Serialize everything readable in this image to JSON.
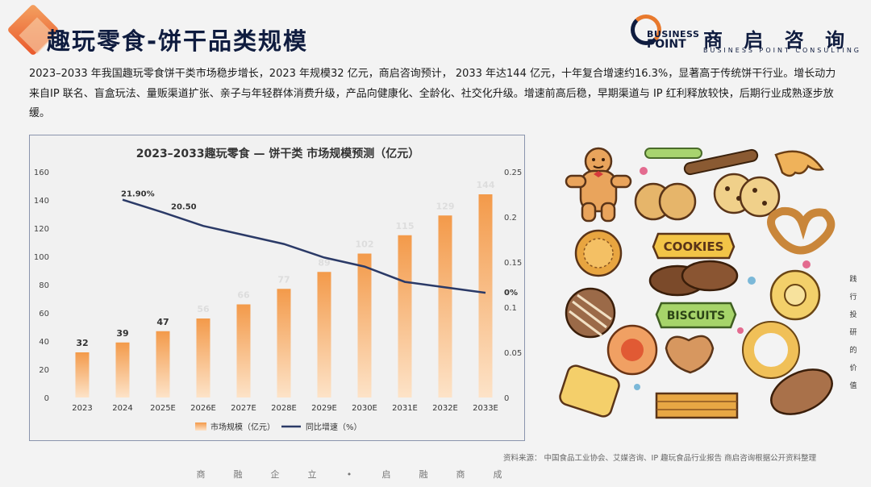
{
  "header": {
    "title": "趣玩零食-饼干品类规模",
    "logo_cn": "商 启 咨 询",
    "logo_en_line1": "BUSINESS",
    "logo_en_line2": "POINT",
    "logo_en_sub": "BUSINESS POINT CONSULTING"
  },
  "intro": "2023–2033 年我国趣玩零食饼干类市场稳步增长，2023 年规模32 亿元，商启咨询预计， 2033 年达144 亿元，十年复合增速约16.3%，显著高于传统饼干行业。增长动力来自IP 联名、盲盒玩法、量贩渠道扩张、亲子与年轻群体消费升级，产品向健康化、全龄化、社交化升级。增速前高后稳，早期渠道与 IP 红利释放较快，后期行业成熟逐步放缓。",
  "chart_data": {
    "type": "bar",
    "title": "2023–2033趣玩零食 — 饼干类 市场规模预测（亿元）",
    "categories": [
      "2023",
      "2024",
      "2025E",
      "2026E",
      "2027E",
      "2028E",
      "2029E",
      "2030E",
      "2031E",
      "2032E",
      "2033E"
    ],
    "series": [
      {
        "name": "市场规模（亿元）",
        "type": "bar",
        "axis": "left",
        "values": [
          32,
          39,
          47,
          56,
          66,
          77,
          89,
          102,
          115,
          129,
          144
        ]
      },
      {
        "name": "同比增速（%）",
        "type": "line",
        "axis": "right",
        "values": [
          null,
          0.219,
          0.205,
          0.19,
          0.18,
          0.17,
          0.155,
          0.145,
          0.128,
          0.122,
          0.116
        ]
      }
    ],
    "bar_labels": [
      "32",
      "39",
      "47",
      "56",
      "66",
      "77",
      "89",
      "102",
      "115",
      "129",
      "144"
    ],
    "line_labels": [
      "21.90%",
      "20.50"
    ],
    "ylim_left": [
      0,
      160
    ],
    "yticks_left": [
      "0",
      "20",
      "40",
      "60",
      "80",
      "100",
      "120",
      "140",
      "160"
    ],
    "ylim_right": [
      0,
      0.25
    ],
    "yticks_right": [
      "0",
      "0.05",
      "0.1",
      "0.15",
      "0.2",
      "0.25"
    ],
    "right_axis_extra_label": "0%",
    "legend_position": "bottom",
    "colors": {
      "bar_top": "#f39a4a",
      "bar_bottom": "#fde3c8",
      "line": "#2b3a67"
    }
  },
  "side_text": [
    "践",
    "行",
    "投",
    "研",
    "的",
    "价",
    "值"
  ],
  "source": "资料来源：   中国食品工业协会、艾媒咨询、IP 趣玩食品行业报告 商启咨询根据公开资料整理",
  "footer": [
    "商",
    "融",
    "企",
    "立",
    "•",
    "启",
    "融",
    "商",
    "成"
  ],
  "illustration": {
    "cookies_label": "COOKIES",
    "biscuits_label": "BISCUITS"
  }
}
